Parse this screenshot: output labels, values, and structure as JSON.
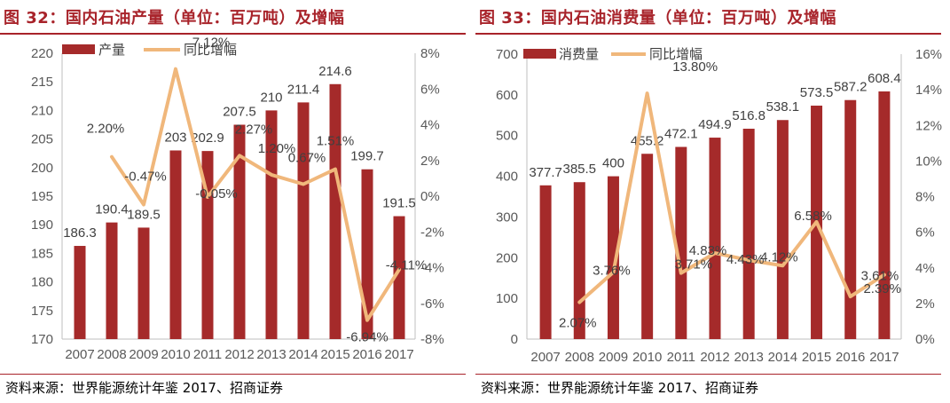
{
  "charts": [
    {
      "title": "图 32：国内石油产量（单位：百万吨）及增幅",
      "source": "资料来源：世界能源统计年鉴 2017、招商证券"
    },
    {
      "title": "图 33：国内石油消费量（单位：百万吨）及增幅",
      "source": "资料来源：世界能源统计年鉴 2017、招商证券"
    }
  ],
  "colors": {
    "bar": "#a52a2a",
    "line": "#f0b77b",
    "title": "#a8232a"
  },
  "chart_data": [
    {
      "type": "bar",
      "categories": [
        "2007",
        "2008",
        "2009",
        "2010",
        "2011",
        "2012",
        "2013",
        "2014",
        "2015",
        "2016",
        "2017"
      ],
      "series": [
        {
          "name": "产量",
          "type": "bar",
          "axis": "left",
          "values": [
            186.3,
            190.4,
            189.5,
            203,
            202.9,
            207.5,
            210,
            211.4,
            214.6,
            199.7,
            191.5
          ],
          "labels": [
            "186.3",
            "190.4",
            "189.5",
            "203",
            "202.9",
            "207.5",
            "210",
            "211.4",
            "214.6",
            "199.7",
            "191.5"
          ]
        },
        {
          "name": "同比增幅",
          "type": "line",
          "axis": "right",
          "values": [
            null,
            2.2,
            -0.47,
            7.12,
            -0.05,
            2.27,
            1.2,
            0.67,
            1.51,
            -6.94,
            -4.11
          ],
          "labels": [
            "",
            "2.20%",
            "-0.47%",
            "7.12%",
            "-0.05%",
            "2.27%",
            "1.20%",
            "0.67%",
            "1.51%",
            "-6.94%",
            "-4.11%"
          ]
        }
      ],
      "y_left": {
        "min": 170,
        "max": 220,
        "step": 5,
        "ticks": [
          "170",
          "175",
          "180",
          "185",
          "190",
          "195",
          "200",
          "205",
          "210",
          "215",
          "220"
        ]
      },
      "y_right": {
        "min": -8,
        "max": 8,
        "step": 2,
        "ticks": [
          "-8%",
          "-6%",
          "-4%",
          "-2%",
          "0%",
          "2%",
          "4%",
          "6%",
          "8%"
        ]
      },
      "grid": false,
      "legend": "top-left"
    },
    {
      "type": "bar",
      "categories": [
        "2007",
        "2008",
        "2009",
        "2010",
        "2011",
        "2012",
        "2013",
        "2014",
        "2015",
        "2016",
        "2017"
      ],
      "series": [
        {
          "name": "消费量",
          "type": "bar",
          "axis": "left",
          "values": [
            377.7,
            385.5,
            400,
            455.2,
            472.1,
            494.9,
            516.8,
            538.1,
            573.5,
            587.2,
            608.4
          ],
          "labels": [
            "377.7",
            "385.5",
            "400",
            "455.2",
            "472.1",
            "494.9",
            "516.8",
            "538.1",
            "573.5",
            "587.2",
            "608.4"
          ]
        },
        {
          "name": "同比增幅",
          "type": "line",
          "axis": "right",
          "values": [
            null,
            2.07,
            3.76,
            13.8,
            3.71,
            4.83,
            4.43,
            4.12,
            6.58,
            2.39,
            3.61
          ],
          "labels": [
            "",
            "2.07%",
            "3.76%",
            "13.80%",
            "3.71%",
            "4.83%",
            "4.43%",
            "4.12%",
            "6.58%",
            "2.39%",
            "3.61%"
          ]
        }
      ],
      "y_left": {
        "min": 0,
        "max": 700,
        "step": 100,
        "ticks": [
          "0",
          "100",
          "200",
          "300",
          "400",
          "500",
          "600",
          "700"
        ]
      },
      "y_right": {
        "min": 0,
        "max": 16,
        "step": 2,
        "ticks": [
          "0%",
          "2%",
          "4%",
          "6%",
          "8%",
          "10%",
          "12%",
          "14%",
          "16%"
        ]
      },
      "grid": false,
      "legend": "top-left"
    }
  ]
}
